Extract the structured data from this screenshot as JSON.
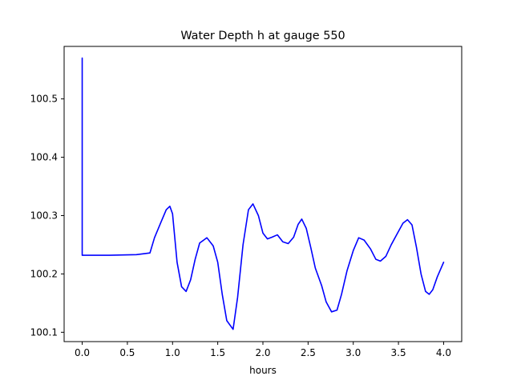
{
  "chart_data": {
    "type": "line",
    "title": "Water Depth h at gauge 550",
    "xlabel": "hours",
    "ylabel": "",
    "xlim": [
      -0.2,
      4.2
    ],
    "ylim": [
      100.084,
      100.59
    ],
    "grid": false,
    "legend": "none",
    "x_ticks": [
      0.0,
      0.5,
      1.0,
      1.5,
      2.0,
      2.5,
      3.0,
      3.5,
      4.0
    ],
    "x_tick_labels": [
      "0.0",
      "0.5",
      "1.0",
      "1.5",
      "2.0",
      "2.5",
      "3.0",
      "3.5",
      "4.0"
    ],
    "y_ticks": [
      100.1,
      100.2,
      100.3,
      100.4,
      100.5
    ],
    "y_tick_labels": [
      "100.1",
      "100.2",
      "100.3",
      "100.4",
      "100.5"
    ],
    "series": [
      {
        "color": "#0000ff",
        "x": [
          0.0,
          0.0,
          0.0,
          0.3,
          0.6,
          0.75,
          0.8,
          0.87,
          0.93,
          0.97,
          1.0,
          1.05,
          1.1,
          1.15,
          1.2,
          1.25,
          1.3,
          1.38,
          1.45,
          1.5,
          1.55,
          1.6,
          1.67,
          1.72,
          1.78,
          1.84,
          1.89,
          1.95,
          2.0,
          2.05,
          2.1,
          2.16,
          2.22,
          2.28,
          2.34,
          2.39,
          2.43,
          2.48,
          2.53,
          2.58,
          2.65,
          2.7,
          2.76,
          2.82,
          2.87,
          2.93,
          3.0,
          3.06,
          3.12,
          3.19,
          3.25,
          3.3,
          3.36,
          3.42,
          3.49,
          3.55,
          3.6,
          3.65,
          3.7,
          3.75,
          3.8,
          3.84,
          3.88,
          3.93,
          4.0
        ],
        "y": [
          100.57,
          100.232,
          100.232,
          100.232,
          100.233,
          100.236,
          100.262,
          100.288,
          100.31,
          100.316,
          100.303,
          100.22,
          100.178,
          100.17,
          100.19,
          100.225,
          100.253,
          100.262,
          100.248,
          100.22,
          100.165,
          100.12,
          100.105,
          100.16,
          100.25,
          100.31,
          100.32,
          100.3,
          100.27,
          100.26,
          100.263,
          100.267,
          100.255,
          100.252,
          100.263,
          100.285,
          100.294,
          100.278,
          100.245,
          100.21,
          100.18,
          100.152,
          100.135,
          100.138,
          100.165,
          100.205,
          100.24,
          100.262,
          100.258,
          100.243,
          100.225,
          100.222,
          100.23,
          100.25,
          100.27,
          100.287,
          100.293,
          100.284,
          100.245,
          100.2,
          100.17,
          100.165,
          100.173,
          100.195,
          100.22
        ]
      }
    ]
  }
}
